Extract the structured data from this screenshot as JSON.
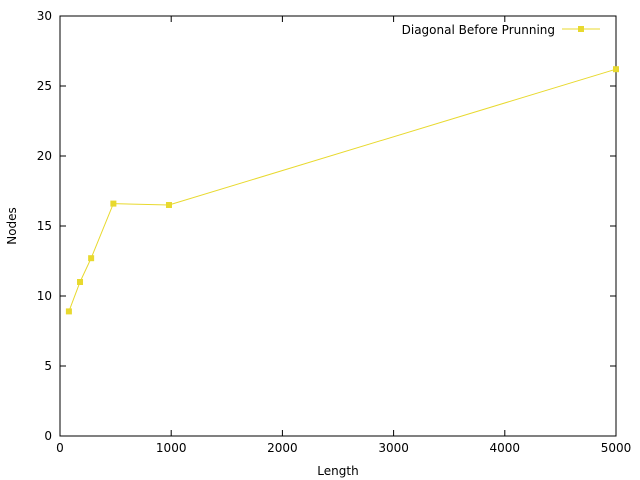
{
  "chart_data": {
    "type": "line",
    "xlabel": "Length",
    "ylabel": "Nodes",
    "xlim": [
      0,
      5000
    ],
    "ylim": [
      0,
      30
    ],
    "x_ticks": [
      0,
      1000,
      2000,
      3000,
      4000,
      5000
    ],
    "y_ticks": [
      0,
      5,
      10,
      15,
      20,
      25,
      30
    ],
    "grid": false,
    "legend_position": "top-right",
    "series": [
      {
        "name": "Diagonal Before Prunning",
        "color": "#e8d92e",
        "marker": "square",
        "x": [
          80,
          180,
          280,
          480,
          980,
          5000
        ],
        "y": [
          8.9,
          11.0,
          12.7,
          16.6,
          16.5,
          26.2
        ]
      }
    ]
  }
}
